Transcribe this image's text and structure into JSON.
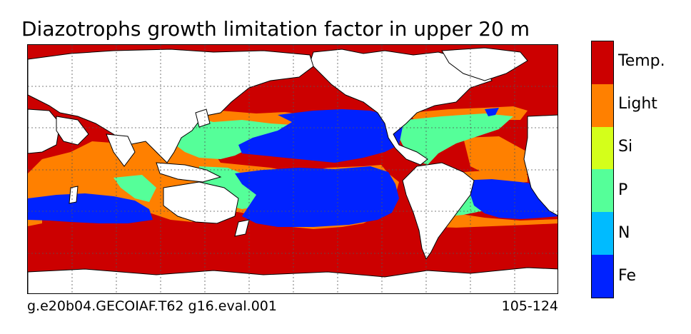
{
  "title": "Diazotrophs growth limitation factor in upper 20 m",
  "footer": {
    "case_name": "g.e20b04.GECOIAF.T62 g16.eval.001",
    "years": "105-124"
  },
  "legend": [
    {
      "label": "Temp.",
      "color": "#cc0000"
    },
    {
      "label": "Light",
      "color": "#ff8000"
    },
    {
      "label": "Si",
      "color": "#d4ff1a"
    },
    {
      "label": "P",
      "color": "#55ff99"
    },
    {
      "label": "N",
      "color": "#00bbff"
    },
    {
      "label": "Fe",
      "color": "#0022ff"
    }
  ],
  "map": {
    "land_color": "#ffffff",
    "grid": "dotted",
    "ocean_colors": {
      "temperature": "#cc0000",
      "light": "#ff8000",
      "phosphorus": "#55ff99",
      "iron": "#0022ff"
    }
  }
}
